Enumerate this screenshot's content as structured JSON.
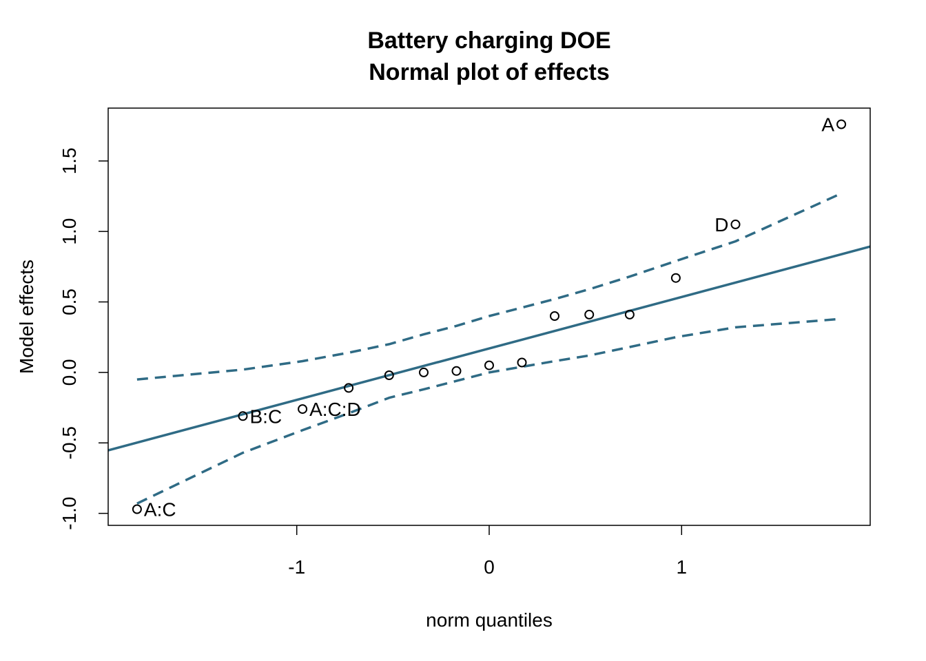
{
  "chart_data": {
    "type": "scatter",
    "title": [
      "Battery charging DOE",
      "Normal plot of effects"
    ],
    "xlabel": "norm quantiles",
    "ylabel": "Model effects",
    "xlim": [
      -1.98,
      1.98
    ],
    "ylim": [
      -1.085,
      1.875
    ],
    "x_ticks": [
      "-1",
      "0",
      "1"
    ],
    "x_tick_values": [
      -1,
      0,
      1
    ],
    "y_ticks": [
      "-1.0",
      "-0.5",
      "0.0",
      "0.5",
      "1.0",
      "1.5"
    ],
    "y_tick_values": [
      -1.0,
      -0.5,
      0.0,
      0.5,
      1.0,
      1.5
    ],
    "grid": false,
    "line_color": "#2f6b85",
    "points": [
      {
        "x": -1.83,
        "y": -0.97,
        "label": "A:C"
      },
      {
        "x": -1.28,
        "y": -0.31,
        "label": "B:C"
      },
      {
        "x": -0.97,
        "y": -0.26,
        "label": "A:C:D"
      },
      {
        "x": -0.73,
        "y": -0.11,
        "label": ""
      },
      {
        "x": -0.52,
        "y": -0.02,
        "label": ""
      },
      {
        "x": -0.34,
        "y": 0.0,
        "label": ""
      },
      {
        "x": -0.17,
        "y": 0.01,
        "label": ""
      },
      {
        "x": 0.0,
        "y": 0.05,
        "label": ""
      },
      {
        "x": 0.17,
        "y": 0.07,
        "label": ""
      },
      {
        "x": 0.34,
        "y": 0.4,
        "label": ""
      },
      {
        "x": 0.52,
        "y": 0.41,
        "label": ""
      },
      {
        "x": 0.73,
        "y": 0.41,
        "label": ""
      },
      {
        "x": 0.97,
        "y": 0.67,
        "label": ""
      },
      {
        "x": 1.28,
        "y": 1.05,
        "label": "D"
      },
      {
        "x": 1.83,
        "y": 1.76,
        "label": "A"
      }
    ],
    "reference_line": {
      "slope": 0.365,
      "intercept": 0.17
    },
    "confidence_band": {
      "x": [
        -1.83,
        -1.28,
        -0.97,
        -0.73,
        -0.52,
        -0.34,
        -0.17,
        0.0,
        0.17,
        0.34,
        0.52,
        0.73,
        0.97,
        1.28,
        1.83
      ],
      "upper": [
        -0.05,
        0.02,
        0.08,
        0.14,
        0.2,
        0.27,
        0.33,
        0.4,
        0.46,
        0.52,
        0.59,
        0.68,
        0.79,
        0.93,
        1.27
      ],
      "lower": [
        -0.93,
        -0.57,
        -0.41,
        -0.29,
        -0.18,
        -0.12,
        -0.06,
        0.0,
        0.04,
        0.08,
        0.12,
        0.18,
        0.25,
        0.32,
        0.38
      ]
    }
  }
}
